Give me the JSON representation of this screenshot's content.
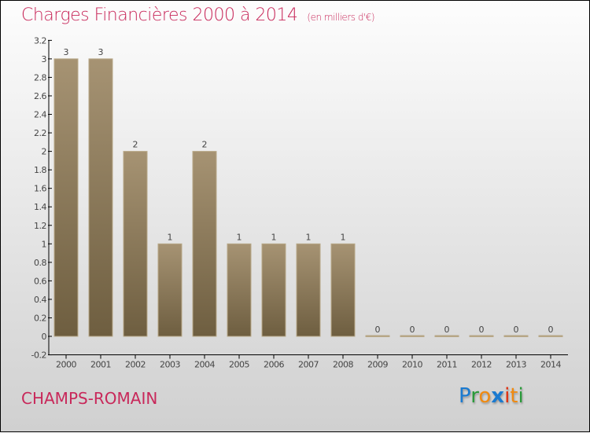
{
  "chart_data": {
    "type": "bar",
    "title": "Charges Financières 2000 à 2014",
    "subtitle": "(en milliers d'€)",
    "categories": [
      "2000",
      "2001",
      "2002",
      "2003",
      "2004",
      "2005",
      "2006",
      "2007",
      "2008",
      "2009",
      "2010",
      "2011",
      "2012",
      "2013",
      "2014"
    ],
    "values": [
      3,
      3,
      2,
      1,
      2,
      1,
      1,
      1,
      1,
      0,
      0,
      0,
      0,
      0,
      0
    ],
    "data_labels": [
      "3",
      "3",
      "2",
      "1",
      "2",
      "1",
      "1",
      "1",
      "1",
      "0",
      "0",
      "0",
      "0",
      "0",
      "0"
    ],
    "ylim": [
      -0.2,
      3.2
    ],
    "yticks": [
      "-0.2",
      "0",
      "0.2",
      "0.4",
      "0.6",
      "0.8",
      "1",
      "1.2",
      "1.4",
      "1.6",
      "1.8",
      "2",
      "2.2",
      "2.4",
      "2.6",
      "2.8",
      "3",
      "3.2"
    ],
    "xlabel": "",
    "ylabel": "",
    "grid": false,
    "bar_color": "#8a7a5c"
  },
  "footer": {
    "city": "CHAMPS-ROMAIN",
    "logo": "Proxiti"
  }
}
